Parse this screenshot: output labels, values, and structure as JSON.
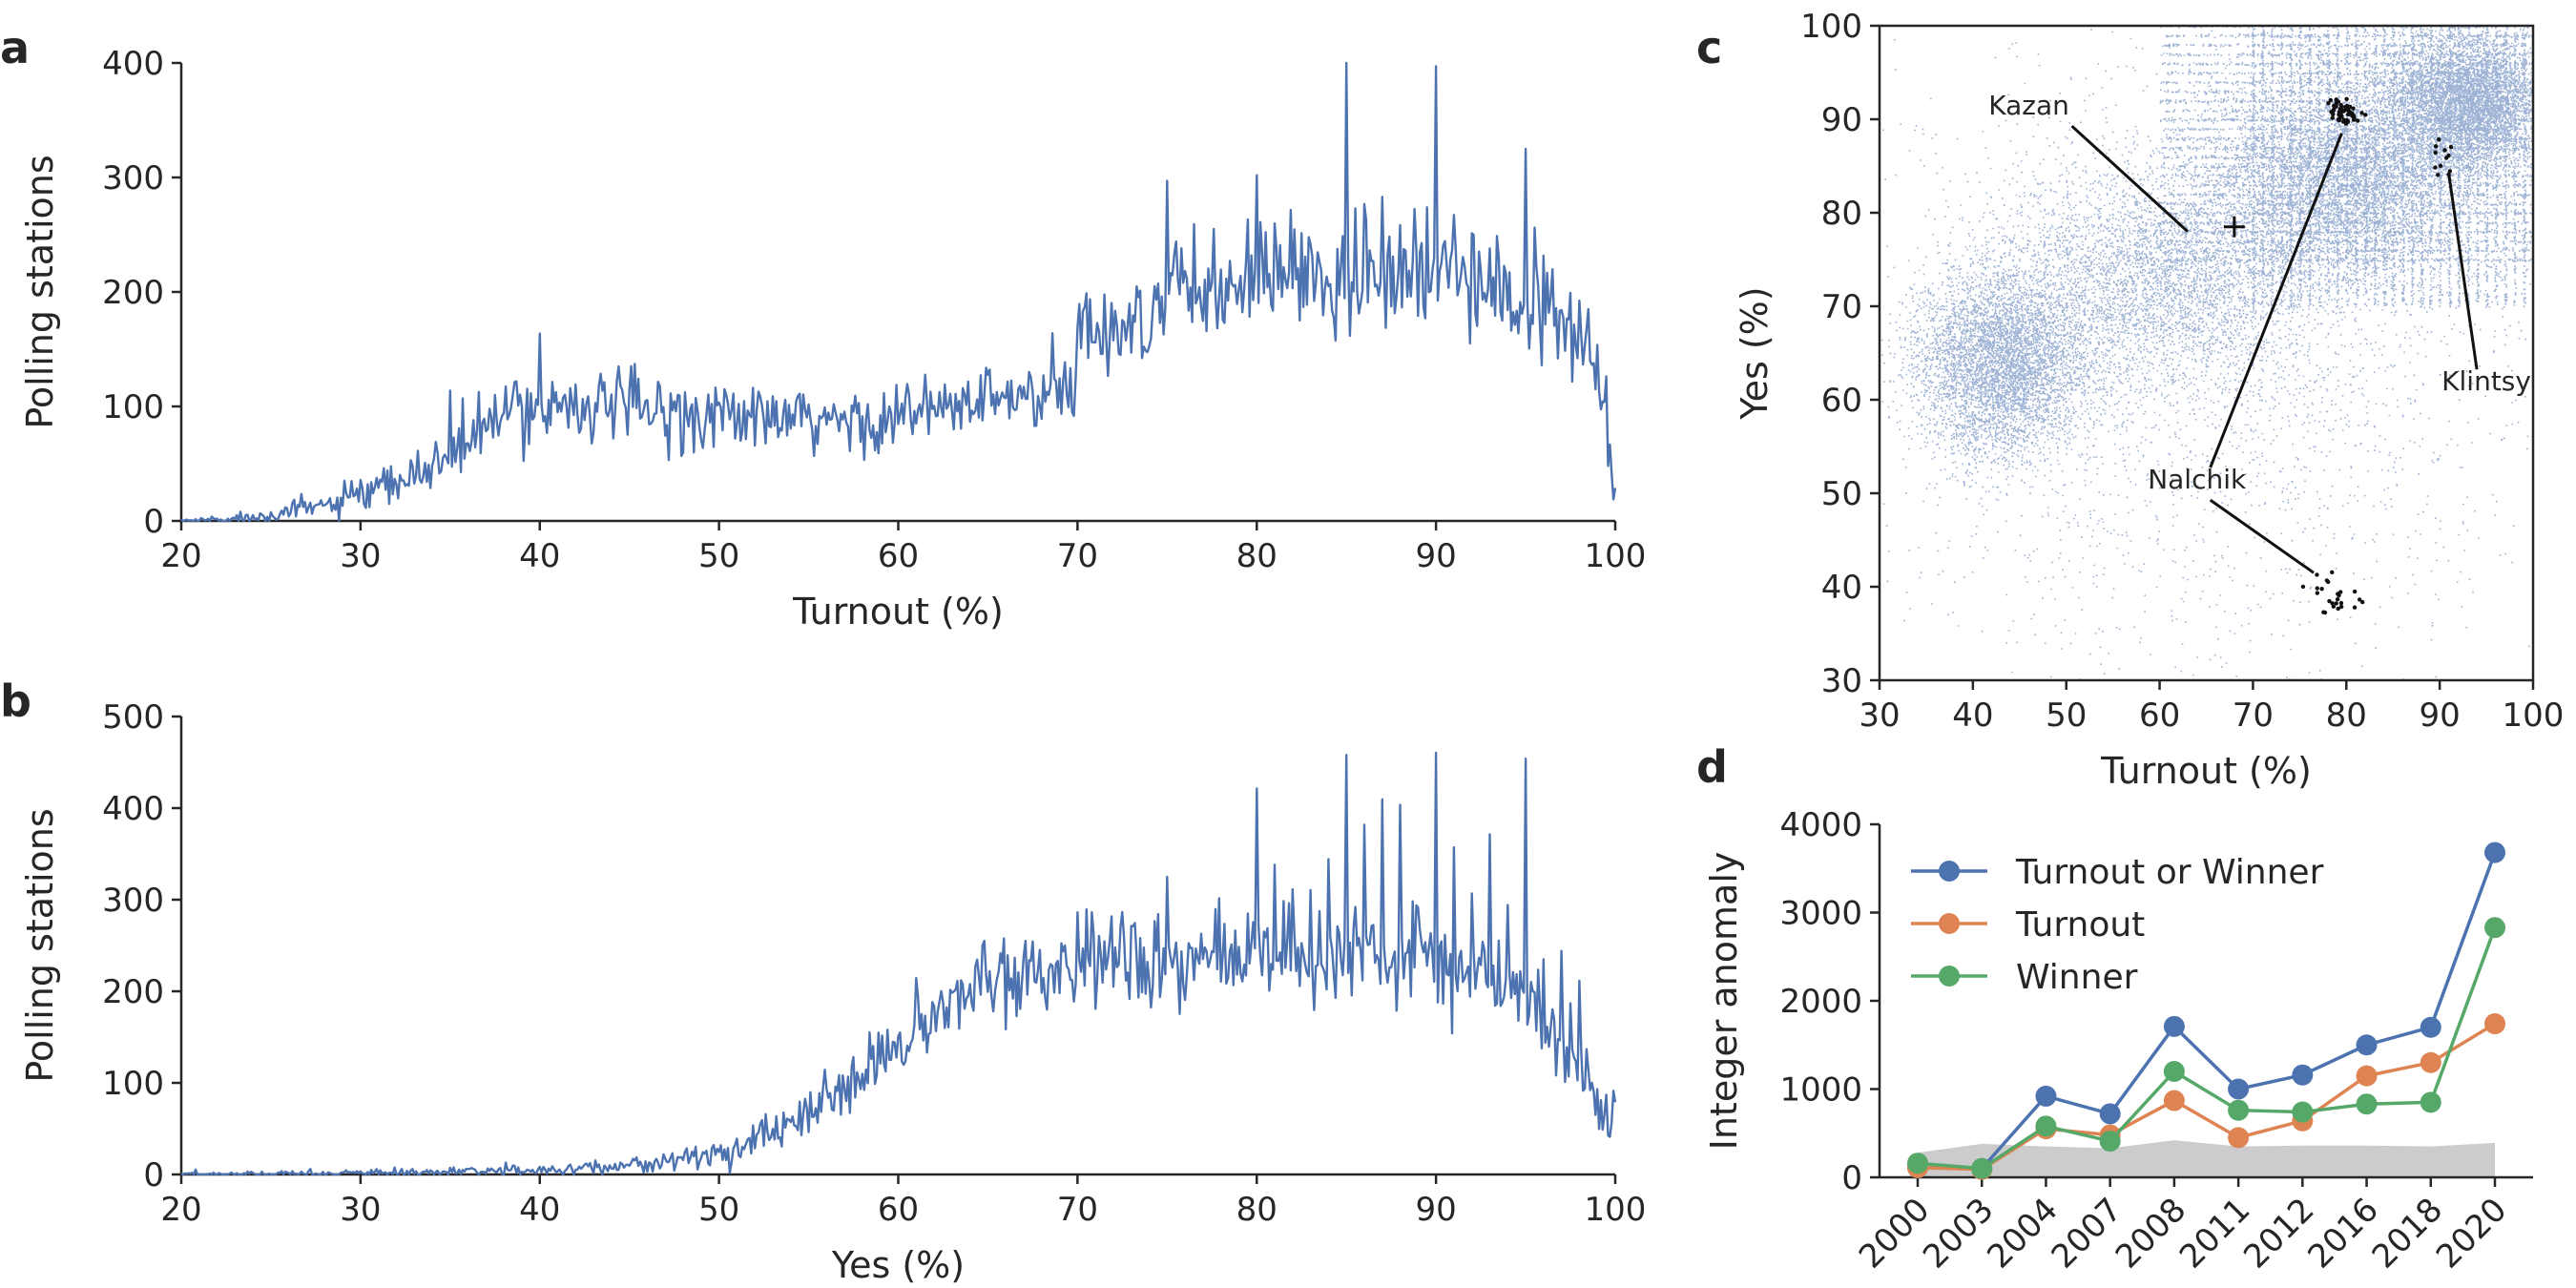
{
  "chart_data": [
    {
      "panel": "a",
      "type": "line",
      "xlabel": "Turnout (%)",
      "ylabel": "Polling stations",
      "xlim": [
        20,
        100
      ],
      "ylim": [
        0,
        400
      ],
      "xticks": [
        20,
        30,
        40,
        50,
        60,
        70,
        80,
        90,
        100
      ],
      "yticks": [
        0,
        100,
        200,
        300,
        400
      ],
      "color": "#4c72b0",
      "envelope": [
        [
          20,
          0
        ],
        [
          23,
          2
        ],
        [
          26,
          8
        ],
        [
          30,
          20
        ],
        [
          33,
          38
        ],
        [
          36,
          70
        ],
        [
          38,
          92
        ],
        [
          40,
          105
        ],
        [
          45,
          98
        ],
        [
          50,
          92
        ],
        [
          55,
          85
        ],
        [
          60,
          90
        ],
        [
          65,
          105
        ],
        [
          69.9,
          110
        ],
        [
          70,
          170
        ],
        [
          72,
          165
        ],
        [
          74,
          175
        ],
        [
          75,
          200
        ],
        [
          80,
          210
        ],
        [
          85,
          215
        ],
        [
          90,
          210
        ],
        [
          95,
          185
        ],
        [
          97,
          170
        ],
        [
          98.5,
          150
        ],
        [
          99.3,
          100
        ],
        [
          99.7,
          60
        ],
        [
          100,
          25
        ]
      ],
      "spikes": [
        [
          25,
          5
        ],
        [
          30,
          15
        ],
        [
          35,
          20
        ],
        [
          40,
          30
        ],
        [
          45,
          15
        ],
        [
          50,
          15
        ],
        [
          55,
          12
        ],
        [
          60,
          15
        ],
        [
          65,
          15
        ],
        [
          70,
          25
        ],
        [
          75,
          60
        ],
        [
          80,
          70
        ],
        [
          82,
          40
        ],
        [
          85,
          180
        ],
        [
          86,
          60
        ],
        [
          87,
          50
        ],
        [
          88,
          40
        ],
        [
          90,
          180
        ],
        [
          91,
          80
        ],
        [
          92,
          50
        ],
        [
          93,
          40
        ],
        [
          95,
          180
        ],
        [
          96,
          40
        ],
        [
          97,
          40
        ],
        [
          98,
          55
        ],
        [
          99,
          30
        ]
      ]
    },
    {
      "panel": "b",
      "type": "line",
      "xlabel": "Yes (%)",
      "ylabel": "Polling stations",
      "xlim": [
        20,
        100
      ],
      "ylim": [
        0,
        500
      ],
      "xticks": [
        20,
        30,
        40,
        50,
        60,
        70,
        80,
        90,
        100
      ],
      "yticks": [
        0,
        100,
        200,
        300,
        400,
        500
      ],
      "color": "#4c72b0",
      "envelope": [
        [
          20,
          0
        ],
        [
          35,
          2
        ],
        [
          40,
          5
        ],
        [
          45,
          10
        ],
        [
          50,
          22
        ],
        [
          53,
          45
        ],
        [
          56,
          80
        ],
        [
          60,
          140
        ],
        [
          63,
          185
        ],
        [
          66,
          220
        ],
        [
          70,
          230
        ],
        [
          75,
          230
        ],
        [
          80,
          240
        ],
        [
          85,
          245
        ],
        [
          90,
          230
        ],
        [
          94,
          200
        ],
        [
          96,
          170
        ],
        [
          98,
          120
        ],
        [
          99,
          80
        ],
        [
          99.6,
          45
        ],
        [
          100,
          65
        ]
      ],
      "spikes": [
        [
          70,
          30
        ],
        [
          75,
          90
        ],
        [
          80,
          190
        ],
        [
          81,
          80
        ],
        [
          82,
          100
        ],
        [
          83,
          120
        ],
        [
          84,
          90
        ],
        [
          85,
          230
        ],
        [
          86,
          120
        ],
        [
          87,
          130
        ],
        [
          88,
          150
        ],
        [
          89,
          110
        ],
        [
          90,
          220
        ],
        [
          91,
          130
        ],
        [
          92,
          120
        ],
        [
          93,
          130
        ],
        [
          94,
          110
        ],
        [
          95,
          300
        ],
        [
          96,
          80
        ],
        [
          97,
          80
        ],
        [
          98,
          70
        ]
      ]
    },
    {
      "panel": "c",
      "type": "scatter",
      "xlabel": "Turnout (%)",
      "ylabel": "Yes (%)",
      "xlim": [
        30,
        100
      ],
      "ylim": [
        30,
        100
      ],
      "xticks": [
        30,
        40,
        50,
        60,
        70,
        80,
        90,
        100
      ],
      "yticks": [
        30,
        40,
        50,
        60,
        70,
        80,
        90,
        100
      ],
      "color": "#4c72b0",
      "clusters": [
        {
          "cx": 43,
          "cy": 64,
          "sx": 4.5,
          "sy": 5,
          "n": 5200
        },
        {
          "cx": 60,
          "cy": 73,
          "sx": 8,
          "sy": 6,
          "n": 3800
        },
        {
          "cx": 80,
          "cy": 84,
          "sx": 7,
          "sy": 5.5,
          "n": 7500
        },
        {
          "cx": 93,
          "cy": 92,
          "sx": 4,
          "sy": 3.5,
          "n": 6500
        },
        {
          "cx": 65,
          "cy": 65,
          "sx": 18,
          "sy": 16,
          "n": 2600
        }
      ],
      "kazan_marker": [
        68,
        78.5
      ],
      "annotations": [
        {
          "text": "Kazan",
          "pos": [
            46,
            90.5
          ],
          "target": [
            63,
            78
          ]
        },
        {
          "text": "Nalchik",
          "pos": [
            64,
            50.5
          ],
          "target": [
            79.5,
            88.5
          ]
        },
        {
          "text": "Nalchik",
          "pos": [
            64,
            50.5
          ],
          "target": [
            76.5,
            41.5
          ]
        },
        {
          "text": "Klintsy",
          "pos": [
            95,
            61
          ],
          "target": [
            91,
            84
          ]
        }
      ],
      "nalchik_top": {
        "cx": 79.8,
        "cy": 90.7,
        "n": 60
      },
      "nalchik_bottom": {
        "cx": 78.5,
        "cy": 39.0,
        "n": 25
      },
      "klintsy": {
        "cx": 90.5,
        "cy": 86,
        "n": 12
      }
    },
    {
      "panel": "d",
      "type": "line",
      "xlabel": "",
      "ylabel": "Integer anomaly",
      "categories": [
        "2000",
        "2003",
        "2004",
        "2007",
        "2008",
        "2011",
        "2012",
        "2016",
        "2018",
        "2020"
      ],
      "ylim": [
        0,
        4000
      ],
      "yticks": [
        0,
        1000,
        2000,
        3000,
        4000
      ],
      "legend_position": "upper-left",
      "series": [
        {
          "name": "Turnout or Winner",
          "color": "#4c72b0",
          "values": [
            110,
            100,
            920,
            720,
            1710,
            1000,
            1160,
            1500,
            1700,
            3680
          ]
        },
        {
          "name": "Turnout",
          "color": "#dd8452",
          "values": [
            110,
            90,
            550,
            480,
            870,
            450,
            640,
            1150,
            1300,
            1740
          ]
        },
        {
          "name": "Winner",
          "color": "#55a868",
          "values": [
            160,
            100,
            580,
            410,
            1200,
            760,
            740,
            830,
            850,
            2830
          ]
        }
      ],
      "null_band": {
        "color": "#cccccc",
        "values": [
          280,
          380,
          350,
          330,
          420,
          350,
          360,
          360,
          350,
          390
        ]
      }
    }
  ],
  "panel_labels": {
    "a": "a",
    "b": "b",
    "c": "c",
    "d": "d"
  }
}
